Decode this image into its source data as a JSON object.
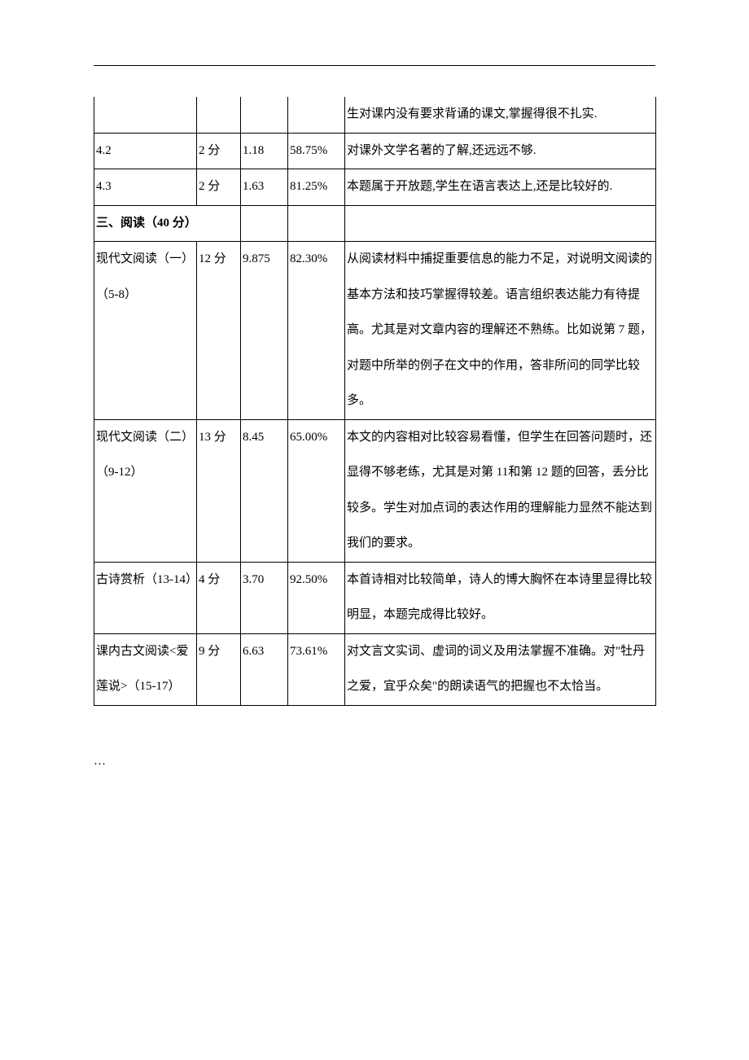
{
  "rows": [
    {
      "cells": [
        "",
        "",
        "",
        "",
        "生对课内没有要求背诵的课文,掌握得很不扎实."
      ],
      "noTopBorder": true
    },
    {
      "cells": [
        "4.2",
        "2 分",
        "1.18",
        "58.75%",
        "对课外文学名著的了解,还远远不够."
      ],
      "noTopBorder": false
    },
    {
      "cells": [
        "4.3",
        "2 分",
        "1.63",
        "81.25%",
        "本题属于开放题,学生在语言表达上,还是比较好的."
      ],
      "noTopBorder": false
    },
    {
      "cells": [
        "三、阅读（40 分）",
        "",
        "",
        ""
      ],
      "noTopBorder": false,
      "isSection": true,
      "colspan": [
        2,
        1,
        1,
        1
      ]
    },
    {
      "cells": [
        "现代文阅读（一）（5-8）",
        "12 分",
        "9.875",
        "82.30%",
        "从阅读材料中捕捉重要信息的能力不足，对说明文阅读的基本方法和技巧掌握得较差。语言组织表达能力有待提高。尤其是对文章内容的理解还不熟练。比如说第 7 题，对题中所举的例子在文中的作用，答非所问的同学比较多。"
      ],
      "noTopBorder": false
    },
    {
      "cells": [
        "现代文阅读（二）（9-12）",
        "13 分",
        "8.45",
        "65.00%",
        "本文的内容相对比较容易看懂，但学生在回答问题时，还显得不够老练，尤其是对第 11和第 12 题的回答，丢分比较多。学生对加点词的表达作用的理解能力显然不能达到我们的要求。"
      ],
      "noTopBorder": false
    },
    {
      "cells": [
        "古诗赏析（13-14）",
        "4 分",
        "3.70",
        "92.50%",
        "本首诗相对比较简单，诗人的博大胸怀在本诗里显得比较明显，本题完成得比较好。"
      ],
      "noTopBorder": false
    },
    {
      "cells": [
        "课内古文阅读<爱莲说>（15-17）",
        "9 分",
        "6.63",
        "73.61%",
        "对文言文实词、虚词的词义及用法掌握不准确。对\"牡丹之爱，宜乎众矣\"的朗读语气的把握也不太恰当。"
      ],
      "noTopBorder": false
    }
  ],
  "footer": "…"
}
